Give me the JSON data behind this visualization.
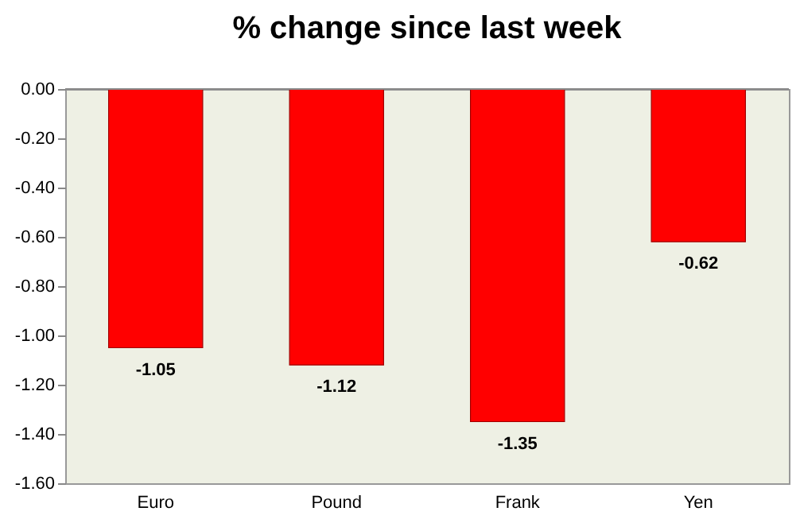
{
  "chart_data": {
    "type": "bar",
    "title": "% change since last week",
    "categories": [
      "Euro",
      "Pound",
      "Frank",
      "Yen"
    ],
    "values": [
      -1.05,
      -1.12,
      -1.35,
      -0.62
    ],
    "color": "#ff0000",
    "ylim": [
      -1.6,
      0
    ],
    "yticks": [
      {
        "value": 0,
        "label": "0.00"
      },
      {
        "value": -0.2,
        "label": "-0.20"
      },
      {
        "value": -0.4,
        "label": "-0.40"
      },
      {
        "value": -0.6,
        "label": "-0.60"
      },
      {
        "value": -0.8,
        "label": "-0.80"
      },
      {
        "value": -1.0,
        "label": "-1.00"
      },
      {
        "value": -1.2,
        "label": "-1.20"
      },
      {
        "value": -1.4,
        "label": "-1.40"
      },
      {
        "value": -1.6,
        "label": "-1.60"
      }
    ],
    "data_labels": true,
    "grid": false
  }
}
